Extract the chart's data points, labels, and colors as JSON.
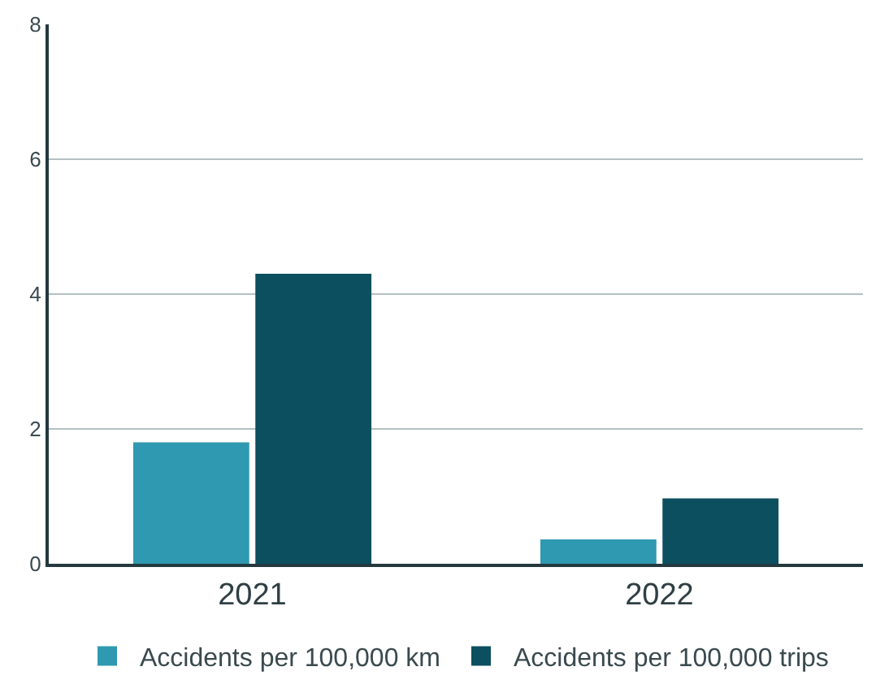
{
  "chart_data": {
    "type": "bar",
    "categories": [
      "2021",
      "2022"
    ],
    "series": [
      {
        "name": "Accidents per 100,000 km",
        "color": "#2e99b0",
        "values": [
          1.8,
          0.36
        ]
      },
      {
        "name": "Accidents per 100,000 trips",
        "color": "#0c4f5f",
        "values": [
          4.3,
          0.97
        ]
      }
    ],
    "ylim": [
      0,
      8
    ],
    "yticks": [
      0,
      2,
      4,
      6,
      8
    ],
    "grid": "y",
    "legend": "bottom"
  }
}
